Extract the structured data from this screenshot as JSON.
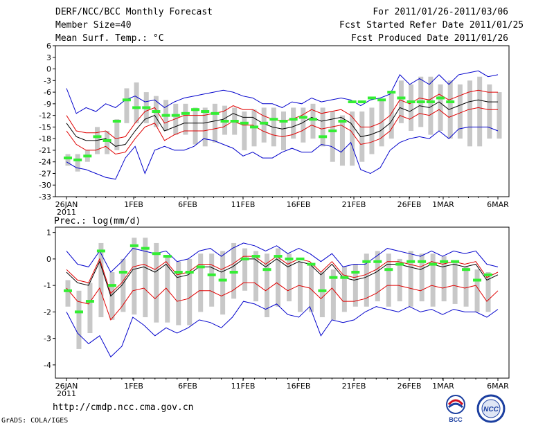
{
  "header": {
    "left": [
      "DERF/NCC/BCC Monthly Forecast",
      "Member Size=40",
      "Mean Surf. Temp.: °C"
    ],
    "right": [
      "For 2011/01/26-2011/03/06",
      "Fcst Started Refer Date 2011/01/25",
      "Fcst Produced Date 2011/01/26"
    ]
  },
  "footer": {
    "url": "http://cmdp.ncc.cma.gov.cn",
    "grads": "GrADS: COLA/IGES"
  },
  "logos": {
    "bcc": "BCC",
    "ncc": "NCC"
  },
  "colors": {
    "ensemble_mean": "#000000",
    "spread": "#e00000",
    "extremes": "#0000cc",
    "observed": "#33ee33",
    "range_bar": "#c8c8c8"
  },
  "chart_data": [
    {
      "type": "line",
      "title": "Mean Surf. Temp.: °C",
      "xlabel": "",
      "ylabel": "",
      "x_ticks": [
        [
          "26JAN",
          "2011"
        ],
        [
          "1FEB"
        ],
        [
          "6FEB"
        ],
        [
          "11FEB"
        ],
        [
          "16FEB"
        ],
        [
          "21FEB"
        ],
        [
          "26FEB"
        ],
        [
          "1MAR"
        ],
        [
          "6MAR"
        ]
      ],
      "y_ticks": [
        "6",
        "3",
        "0",
        "-3",
        "-6",
        "-9",
        "-12",
        "-15",
        "-18",
        "-21",
        "-24",
        "-27",
        "-30",
        "-33"
      ],
      "ylim": [
        -33,
        6
      ],
      "xlim": [
        0,
        39
      ],
      "series": [
        {
          "name": "ensemble mean",
          "values": [
            -14,
            -17.5,
            -18.5,
            -18.5,
            -18,
            -20,
            -19.5,
            -16,
            -13,
            -12,
            -16,
            -15,
            -14,
            -14,
            -14,
            -13.5,
            -13,
            -11.5,
            -12.5,
            -12.5,
            -14,
            -15,
            -15.5,
            -15,
            -14,
            -12.5,
            -13.5,
            -13,
            -12.5,
            -14,
            -17.5,
            -17,
            -16,
            -14,
            -10,
            -11,
            -9.5,
            -10,
            -8.5,
            -10.5,
            -9.5,
            -8.5,
            -8,
            -8.5,
            -8.5
          ]
        },
        {
          "name": "spread upper",
          "values": [
            -12,
            -16,
            -16.5,
            -16.5,
            -16,
            -18,
            -17.5,
            -14,
            -11,
            -10,
            -14,
            -13,
            -12,
            -12,
            -12,
            -11.5,
            -11,
            -9.5,
            -10.5,
            -10.5,
            -12,
            -13,
            -13.5,
            -13,
            -12,
            -10.5,
            -11.5,
            -11,
            -10.5,
            -12,
            -15,
            -15,
            -14,
            -12,
            -8,
            -9,
            -7.5,
            -8,
            -6.5,
            -8,
            -7,
            -6,
            -5.5,
            -6,
            -6
          ]
        },
        {
          "name": "spread lower",
          "values": [
            -16,
            -19.5,
            -21,
            -21,
            -20,
            -22,
            -21.5,
            -18,
            -15,
            -14,
            -18.5,
            -17,
            -16,
            -16,
            -16,
            -15.5,
            -15,
            -13.5,
            -14.5,
            -14.5,
            -16,
            -17,
            -17.5,
            -17,
            -16,
            -14.5,
            -15.5,
            -15,
            -14.5,
            -16,
            -19.5,
            -19,
            -18,
            -16,
            -12,
            -13,
            -11.5,
            -12,
            -10.5,
            -12.5,
            -11.5,
            -10.5,
            -10,
            -10.5,
            -10.5
          ]
        },
        {
          "name": "maximum",
          "values": [
            -5,
            -11.5,
            -10,
            -11,
            -9,
            -10,
            -8,
            -7,
            -8.5,
            -8,
            -10,
            -8.5,
            -7.5,
            -7,
            -6.5,
            -6,
            -5.5,
            -6,
            -7,
            -7.5,
            -9,
            -9,
            -10,
            -8.5,
            -9,
            -7.5,
            -8.5,
            -8,
            -7.5,
            -8,
            -9.5,
            -8,
            -7.5,
            -6.5,
            -1.5,
            -4,
            -2.5,
            -4,
            -1.5,
            -4,
            -1.5,
            -1,
            -0.5,
            -2,
            -1.5
          ]
        },
        {
          "name": "minimum",
          "values": [
            -24,
            -25.5,
            -26,
            -27,
            -28,
            -28.5,
            -23,
            -20,
            -27,
            -21,
            -20,
            -21,
            -21,
            -20,
            -18,
            -18.5,
            -19.5,
            -20.5,
            -22.5,
            -21.5,
            -23,
            -23,
            -21.5,
            -20.5,
            -21.5,
            -21.5,
            -19.5,
            -20,
            -21.5,
            -19,
            -26,
            -27,
            -25.5,
            -21,
            -19,
            -18,
            -17.5,
            -18,
            -16,
            -18,
            -15.5,
            -15,
            -15,
            -15,
            -16
          ]
        }
      ],
      "observed": [
        -23,
        -23.5,
        -22.5,
        -17.5,
        -18.5,
        -13.5,
        -8,
        -10,
        -10,
        -11,
        -12,
        -12,
        -11.5,
        -10.5,
        -11,
        -11.5,
        -13.5,
        -13.5,
        -14,
        -15,
        -14,
        -13,
        -13.5,
        -13,
        -12.5,
        -13,
        -17.5,
        -16,
        -13.5,
        -8.5,
        -8.5,
        -7.5,
        -8,
        -6,
        -7.5,
        -8.5,
        -8.5,
        -8.5,
        -7.5,
        -8.5
      ],
      "range_bars": [
        [
          -25,
          -22
        ],
        [
          -26.5,
          -22
        ],
        [
          -24,
          -21
        ],
        [
          -22,
          -15
        ],
        [
          -22,
          -16
        ],
        [
          -21,
          -13
        ],
        [
          -14,
          -5
        ],
        [
          -14,
          -3.5
        ],
        [
          -14,
          -6
        ],
        [
          -15,
          -7
        ],
        [
          -16,
          -8
        ],
        [
          -17,
          -9
        ],
        [
          -17,
          -9
        ],
        [
          -19.5,
          -10
        ],
        [
          -20,
          -10
        ],
        [
          -19,
          -9
        ],
        [
          -17,
          -9.5
        ],
        [
          -17,
          -10
        ],
        [
          -21,
          -11
        ],
        [
          -20,
          -10.5
        ],
        [
          -19,
          -10
        ],
        [
          -20,
          -10
        ],
        [
          -21,
          -11
        ],
        [
          -18,
          -10
        ],
        [
          -19,
          -10
        ],
        [
          -18,
          -9
        ],
        [
          -20,
          -10
        ],
        [
          -24,
          -11
        ],
        [
          -25,
          -12
        ],
        [
          -25,
          -11
        ],
        [
          -24,
          -11
        ],
        [
          -22,
          -10
        ],
        [
          -20,
          -8
        ],
        [
          -18,
          -6
        ],
        [
          -14,
          -3
        ],
        [
          -16,
          -4
        ],
        [
          -15,
          -2
        ],
        [
          -17,
          -2
        ],
        [
          -16,
          -4
        ],
        [
          -18,
          -3
        ],
        [
          -18,
          -4
        ],
        [
          -20,
          -3
        ],
        [
          -20,
          -2
        ],
        [
          -18,
          -4
        ],
        [
          -18,
          -6
        ]
      ]
    },
    {
      "type": "line",
      "title": "Prec.: log(mm/d)",
      "xlabel": "",
      "ylabel": "",
      "x_ticks": [
        [
          "26JAN",
          "2011"
        ],
        [
          "1FEB"
        ],
        [
          "6FEB"
        ],
        [
          "11FEB"
        ],
        [
          "16FEB"
        ],
        [
          "21FEB"
        ],
        [
          "26FEB"
        ],
        [
          "1MAR"
        ],
        [
          "6MAR"
        ]
      ],
      "y_ticks": [
        "1",
        "0",
        "-1",
        "-2",
        "-3",
        "-4"
      ],
      "ylim": [
        -4.5,
        1.2
      ],
      "xlim": [
        0,
        39
      ],
      "series": [
        {
          "name": "ensemble mean",
          "values": [
            -0.5,
            -0.9,
            -1,
            -0.1,
            -1.4,
            -1,
            -0.4,
            -0.3,
            -0.5,
            -0.2,
            -0.7,
            -0.6,
            -0.3,
            -0.3,
            -0.5,
            -0.3,
            0,
            0,
            -0.3,
            0,
            -0.3,
            -0.1,
            -0.2,
            -0.6,
            -0.2,
            -0.7,
            -0.8,
            -0.7,
            -0.5,
            -0.2,
            -0.2,
            -0.3,
            -0.4,
            -0.2,
            -0.3,
            -0.2,
            -0.3,
            -0.2,
            -0.8,
            -0.6
          ]
        },
        {
          "name": "spread upper",
          "values": [
            -0.4,
            -0.8,
            -0.9,
            0,
            -1.3,
            -0.9,
            -0.3,
            -0.2,
            -0.4,
            -0.1,
            -0.6,
            -0.5,
            -0.2,
            -0.2,
            -0.4,
            -0.2,
            0.1,
            0.1,
            -0.2,
            0.1,
            -0.2,
            0,
            -0.1,
            -0.5,
            -0.1,
            -0.6,
            -0.7,
            -0.6,
            -0.4,
            -0.1,
            -0.1,
            -0.2,
            -0.3,
            -0.1,
            -0.2,
            -0.1,
            -0.2,
            -0.1,
            -0.7,
            -0.5
          ]
        },
        {
          "name": "spread lower",
          "values": [
            -1.1,
            -1.6,
            -1.7,
            -1.1,
            -2.3,
            -1.8,
            -1.2,
            -1.1,
            -1.5,
            -1.1,
            -1.6,
            -1.5,
            -1.2,
            -1.2,
            -1.4,
            -1.2,
            -0.9,
            -0.9,
            -1.2,
            -0.9,
            -1.2,
            -1,
            -1.1,
            -1.5,
            -1.1,
            -1.6,
            -1.6,
            -1.5,
            -1.3,
            -1,
            -1,
            -1.1,
            -1.2,
            -1,
            -1.1,
            -1,
            -1.1,
            -1,
            -1.6,
            -1.2
          ]
        },
        {
          "name": "maximum",
          "values": [
            0.3,
            -0.2,
            -0.3,
            0.3,
            -0.5,
            -0.1,
            0.4,
            0.3,
            0.2,
            0.3,
            -0.1,
            0,
            0.3,
            0.4,
            0.1,
            0.4,
            0.6,
            0.5,
            0.3,
            0.5,
            0.2,
            0.4,
            0.2,
            -0.1,
            0.2,
            -0.3,
            -0.2,
            -0.2,
            0.1,
            0.4,
            0.3,
            0.2,
            0.1,
            0.3,
            0.1,
            0.3,
            0.2,
            0.3,
            -0.2,
            -0.3
          ]
        },
        {
          "name": "minimum",
          "values": [
            -2,
            -2.8,
            -3.2,
            -2.9,
            -3.7,
            -3.3,
            -2.2,
            -2.5,
            -2.9,
            -2.6,
            -2.8,
            -2.6,
            -2.3,
            -2.4,
            -2.6,
            -2.2,
            -1.6,
            -1.7,
            -1.9,
            -1.7,
            -2.1,
            -2.2,
            -1.8,
            -2.9,
            -2.3,
            -2.4,
            -2.3,
            -2,
            -1.8,
            -1.9,
            -2,
            -1.8,
            -2,
            -1.9,
            -2.1,
            -1.9,
            -2,
            -2,
            -2.2,
            -1.9
          ]
        }
      ],
      "observed": [
        -1.2,
        -2,
        -1.6,
        0.3,
        -1,
        -0.5,
        0.5,
        0.4,
        0.2,
        0.1,
        -0.5,
        -0.5,
        -0.3,
        -0.6,
        -0.8,
        -0.5,
        0,
        0.1,
        -0.4,
        0.1,
        0,
        0,
        -0.2,
        -1.2,
        -0.7,
        -0.7,
        -0.5,
        -0.1,
        -0.1,
        -0.4,
        -0.2,
        -0.1,
        -0.1,
        -0.2,
        -0.1,
        -0.1,
        -0.4,
        -0.8,
        -0.6
      ],
      "range_bars": [
        [
          -1.8,
          -0.8
        ],
        [
          -3.4,
          -1.2
        ],
        [
          -2.8,
          -0.9
        ],
        [
          -2.2,
          0.6
        ],
        [
          -2.3,
          -0.5
        ],
        [
          -2,
          0
        ],
        [
          -2.1,
          0.8
        ],
        [
          -2.2,
          0.8
        ],
        [
          -2.4,
          0.6
        ],
        [
          -2.4,
          0.1
        ],
        [
          -2.5,
          -0.1
        ],
        [
          -2.5,
          0
        ],
        [
          -2,
          0.2
        ],
        [
          -1.8,
          0.2
        ],
        [
          -2.1,
          0.3
        ],
        [
          -1.5,
          0.6
        ],
        [
          -1.2,
          0.4
        ],
        [
          -1.6,
          0.3
        ],
        [
          -2.2,
          0.2
        ],
        [
          -1.8,
          0.4
        ],
        [
          -1.6,
          0.2
        ],
        [
          -2,
          -0.1
        ],
        [
          -2,
          -0.2
        ],
        [
          -2.2,
          -0.5
        ],
        [
          -2.3,
          -0.4
        ],
        [
          -2,
          -0.3
        ],
        [
          -1.8,
          -0.2
        ],
        [
          -1.8,
          0.2
        ],
        [
          -1.6,
          0.3
        ],
        [
          -1.8,
          0.2
        ],
        [
          -1.6,
          0
        ],
        [
          -1.8,
          0.3
        ],
        [
          -1.6,
          0.2
        ],
        [
          -1.8,
          0.2
        ],
        [
          -1.6,
          0.1
        ],
        [
          -1.7,
          -0.1
        ],
        [
          -1.8,
          -0.3
        ],
        [
          -2,
          -0.4
        ],
        [
          -2,
          -0.5
        ]
      ]
    }
  ]
}
